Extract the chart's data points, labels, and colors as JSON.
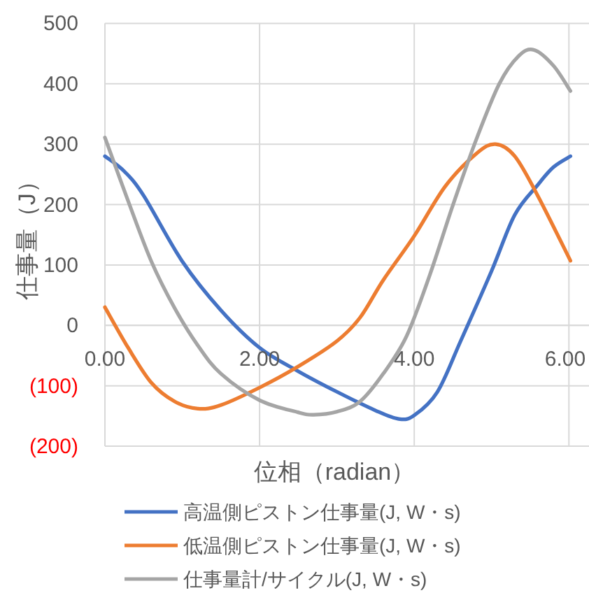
{
  "chart_data": {
    "type": "line",
    "xlabel": "位相（radian）",
    "ylabel": "仕事量（J）",
    "xlim": [
      0,
      6.26
    ],
    "ylim": [
      -200,
      500
    ],
    "xticks": [
      {
        "value": 0,
        "label": "0.00"
      },
      {
        "value": 2,
        "label": "2.00"
      },
      {
        "value": 4,
        "label": "4.00"
      },
      {
        "value": 6,
        "label": "6.00"
      }
    ],
    "yticks": [
      {
        "value": -200,
        "label": "(200)"
      },
      {
        "value": -100,
        "label": "(100)"
      },
      0,
      100,
      200,
      300,
      400,
      500
    ],
    "grid": true,
    "legend": "bottom",
    "marker": "none",
    "line_style": "solid",
    "series": [
      {
        "name": "高温側ピストン仕事量(J, W・s)",
        "color": "#4472c4",
        "x": [
          0,
          0.25,
          0.5,
          1.0,
          1.5,
          2.0,
          2.5,
          3.0,
          3.5,
          3.8,
          4.0,
          4.3,
          4.6,
          5.0,
          5.3,
          5.6,
          5.8,
          6.02
        ],
        "values": [
          280,
          255,
          215,
          106,
          25,
          -37,
          -76,
          -110,
          -141,
          -155,
          -149,
          -110,
          -26,
          90,
          183,
          233,
          262,
          280
        ]
      },
      {
        "name": "低温側ピストン仕事量(J, W・s)",
        "color": "#ed7d31",
        "x": [
          0,
          0.3,
          0.6,
          0.9,
          1.2,
          1.5,
          2.0,
          2.5,
          3.0,
          3.3,
          3.6,
          4.0,
          4.4,
          4.8,
          5.05,
          5.3,
          5.6,
          6.02
        ],
        "values": [
          30,
          -37,
          -95,
          -126,
          -138,
          -132,
          -103,
          -68,
          -26,
          13,
          75,
          148,
          230,
          284,
          300,
          280,
          214,
          107
        ]
      },
      {
        "name": "仕事量計/サイクル(J, W・s)",
        "color": "#a5a5a5",
        "x": [
          0,
          0.3,
          0.6,
          0.9,
          1.2,
          1.5,
          2.0,
          2.5,
          2.7,
          3.0,
          3.3,
          3.6,
          3.9,
          4.2,
          4.5,
          4.8,
          5.1,
          5.35,
          5.55,
          5.8,
          6.02
        ],
        "values": [
          311,
          206,
          106,
          29,
          -33,
          -80,
          -124,
          -144,
          -148,
          -143,
          -126,
          -80,
          -18,
          83,
          199,
          307,
          400,
          446,
          456,
          430,
          388
        ]
      }
    ]
  }
}
